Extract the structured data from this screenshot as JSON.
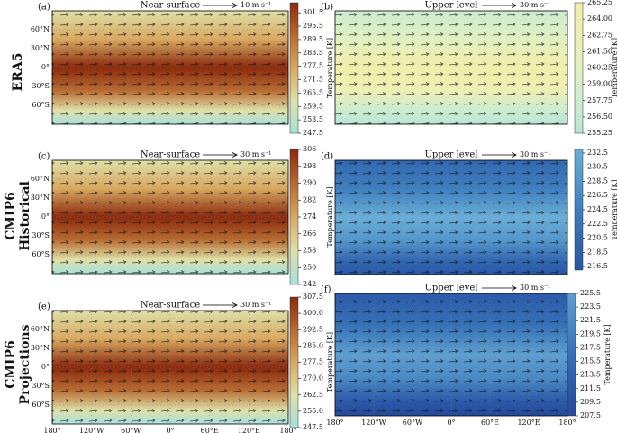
{
  "row_labels": [
    [
      "ERA5"
    ],
    [
      "CMIP6",
      "Historical"
    ],
    [
      "CMIP6",
      "Projections"
    ]
  ],
  "chart_data": [
    {
      "type": "map",
      "label": "(a)",
      "title": "Near-surface",
      "scale": "10 m s⁻¹",
      "colorbar_label": "Temperature [K]",
      "colormap": [
        "#a6e1dc",
        "#dfe0a8",
        "#d8a860",
        "#b86a30",
        "#8a2a0e"
      ],
      "clim": [
        247.5,
        306
      ],
      "cticks": [
        301.5,
        295.5,
        289.5,
        283.5,
        277.5,
        271.5,
        265.5,
        259.5,
        253.5,
        247.5
      ],
      "ylim": [
        -90,
        90
      ],
      "yticks": [
        {
          "value": 60,
          "label": "60°N"
        },
        {
          "value": 30,
          "label": "30°N"
        },
        {
          "value": 0,
          "label": "0°"
        },
        {
          "value": -30,
          "label": "30°S"
        },
        {
          "value": -60,
          "label": "60°S"
        }
      ]
    },
    {
      "type": "map",
      "label": "(b)",
      "title": "Upper level",
      "scale": "30 m s⁻¹",
      "colorbar_label": "Temperature [K]",
      "colormap": [
        "#b8e6d6",
        "#cdeccf",
        "#e0f0c0",
        "#ecf0b4",
        "#f2eeaa"
      ],
      "clim": [
        255.25,
        265.25
      ],
      "cticks": [
        265.25,
        {
          "value": 264,
          "label": "264.00"
        },
        262.75,
        {
          "value": 261.5,
          "label": "261.50"
        },
        260.25,
        {
          "value": 259,
          "label": "259.00"
        },
        257.75,
        {
          "value": 256.5,
          "label": "256.50"
        },
        255.25
      ]
    },
    {
      "type": "map",
      "label": "(c)",
      "title": "Near-surface",
      "scale": "30 m s⁻¹",
      "colorbar_label": "Temperature [K]",
      "colormap": [
        "#a6e1dc",
        "#dfe0a8",
        "#d8a860",
        "#b86a30",
        "#8a2a0e"
      ],
      "clim": [
        242,
        306
      ],
      "cticks": [
        306,
        298,
        290,
        282,
        274,
        266,
        258,
        250,
        242
      ],
      "ylim": [
        -90,
        90
      ],
      "yticks": [
        {
          "value": 60,
          "label": "60°N"
        },
        {
          "value": 30,
          "label": "30°N"
        },
        {
          "value": 0,
          "label": "0°"
        },
        {
          "value": -30,
          "label": "30°S"
        },
        {
          "value": -60,
          "label": "60°S"
        }
      ]
    },
    {
      "type": "map",
      "label": "(d)",
      "title": "Upper level",
      "scale": "30 m s⁻¹",
      "colorbar_label": "Temperature [K]",
      "colormap": [
        "#2a56a4",
        "#3268b0",
        "#3f7fbe",
        "#5596cb",
        "#6aaed6"
      ],
      "clim": [
        216,
        233
      ],
      "cticks": [
        232.5,
        230.5,
        228.5,
        226.5,
        224.5,
        222.5,
        220.5,
        218.5,
        216.5
      ]
    },
    {
      "type": "map",
      "label": "(e)",
      "title": "Near-surface",
      "scale": "30 m s⁻¹",
      "colorbar_label": "Temperature [K]",
      "colormap": [
        "#a6e1dc",
        "#dfe0a8",
        "#d8a860",
        "#b86a30",
        "#8a2a0e"
      ],
      "clim": [
        247.5,
        307.5
      ],
      "cticks": [
        307.5,
        {
          "value": 300,
          "label": "300.0"
        },
        292.5,
        {
          "value": 285,
          "label": "285.0"
        },
        277.5,
        {
          "value": 270,
          "label": "270.0"
        },
        262.5,
        {
          "value": 255,
          "label": "255.0"
        },
        247.5
      ],
      "ylim": [
        -90,
        90
      ],
      "yticks": [
        {
          "value": 60,
          "label": "60°N"
        },
        {
          "value": 30,
          "label": "30°N"
        },
        {
          "value": 0,
          "label": "0°"
        },
        {
          "value": -30,
          "label": "30°S"
        },
        {
          "value": -60,
          "label": "60°S"
        }
      ],
      "xlim": [
        -180,
        180
      ],
      "xticks": [
        {
          "value": -180,
          "label": "180°"
        },
        {
          "value": -120,
          "label": "120°W"
        },
        {
          "value": -60,
          "label": "60°W"
        },
        {
          "value": 0,
          "label": "0°"
        },
        {
          "value": 60,
          "label": "60°E"
        },
        {
          "value": 120,
          "label": "120°E"
        },
        {
          "value": 180,
          "label": "180°"
        }
      ]
    },
    {
      "type": "map",
      "label": "(f)",
      "title": "Upper level",
      "scale": "30 m s⁻¹",
      "colorbar_label": "Temperature [K]",
      "colormap": [
        "#24499a",
        "#2c5aa8",
        "#3570b6",
        "#4a88c4",
        "#5e9fd0"
      ],
      "clim": [
        207.5,
        225.5
      ],
      "cticks": [
        225.5,
        223.5,
        221.5,
        219.5,
        217.5,
        215.5,
        213.5,
        211.5,
        209.5,
        207.5
      ],
      "xlim": [
        -180,
        180
      ],
      "xticks": [
        {
          "value": -180,
          "label": "180°"
        },
        {
          "value": -120,
          "label": "120°W"
        },
        {
          "value": -60,
          "label": "60°W"
        },
        {
          "value": 0,
          "label": "0°"
        },
        {
          "value": 60,
          "label": "60°E"
        },
        {
          "value": 120,
          "label": "120°E"
        },
        {
          "value": 180,
          "label": "180°"
        }
      ]
    }
  ]
}
